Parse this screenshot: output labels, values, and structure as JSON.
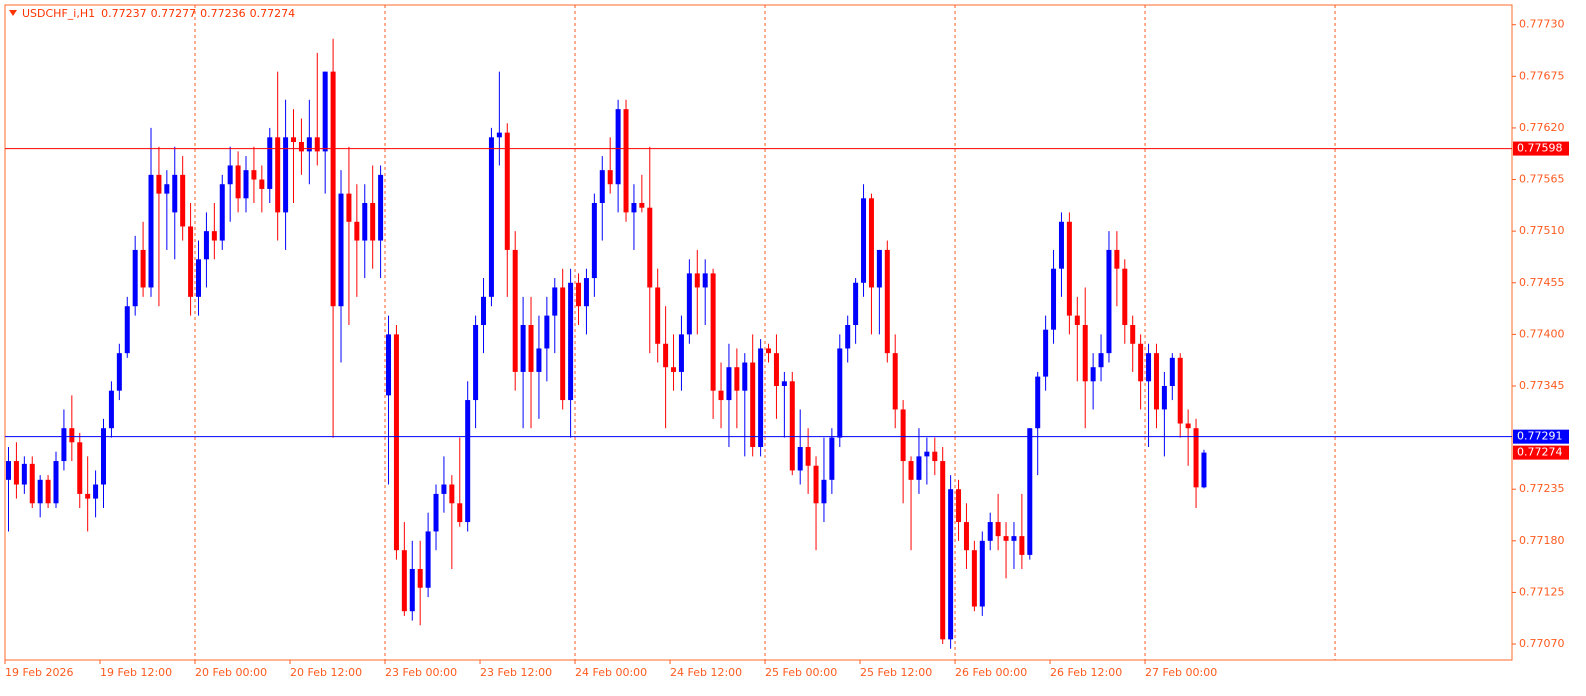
{
  "chart_data": {
    "type": "candlestick",
    "symbol": "USDCHF_i,H1",
    "categories": [
      "19 Feb 2026",
      null,
      null,
      null,
      null,
      null,
      null,
      null,
      null,
      null,
      null,
      null,
      "19 Feb 12:00",
      null,
      null,
      null,
      null,
      null,
      null,
      null,
      null,
      null,
      null,
      null,
      "20 Feb 00:00",
      null,
      null,
      null,
      null,
      null,
      null,
      null,
      null,
      null,
      null,
      null,
      "20 Feb 12:00",
      null,
      null,
      null,
      null,
      null,
      null,
      null,
      null,
      null,
      null,
      null,
      "23 Feb 00:00",
      null,
      null,
      null,
      null,
      null,
      null,
      null,
      null,
      null,
      null,
      null,
      "23 Feb 12:00",
      null,
      null,
      null,
      null,
      null,
      null,
      null,
      null,
      null,
      null,
      null,
      "24 Feb 00:00",
      null,
      null,
      null,
      null,
      null,
      null,
      null,
      null,
      null,
      null,
      null,
      "24 Feb 12:00",
      null,
      null,
      null,
      null,
      null,
      null,
      null,
      null,
      null,
      null,
      null,
      "25 Feb 00:00",
      null,
      null,
      null,
      null,
      null,
      null,
      null,
      null,
      null,
      null,
      null,
      "25 Feb 12:00",
      null,
      null,
      null,
      null,
      null,
      null,
      null,
      null,
      null,
      null,
      null,
      "26 Feb 00:00",
      null,
      null,
      null,
      null,
      null,
      null,
      null,
      null,
      null,
      null,
      null,
      "26 Feb 12:00",
      null,
      null,
      null,
      null,
      null,
      null,
      null,
      null,
      null,
      null,
      null,
      "27 Feb 00:00",
      null,
      null,
      null,
      null,
      null,
      null,
      null
    ],
    "open": [
      0.77245,
      0.77265,
      0.7724,
      0.77262,
      0.7722,
      0.77245,
      0.7722,
      0.77265,
      0.773,
      0.77285,
      0.7723,
      0.77225,
      0.7724,
      0.773,
      0.7734,
      0.7738,
      0.7743,
      0.7749,
      0.7745,
      0.7757,
      0.7755,
      0.7753,
      0.7757,
      0.77515,
      0.7744,
      0.7748,
      0.7751,
      0.775,
      0.7756,
      0.7758,
      0.77545,
      0.77575,
      0.77565,
      0.77555,
      0.7761,
      0.7753,
      0.7761,
      0.77605,
      0.77595,
      0.7761,
      0.77595,
      0.7768,
      0.7743,
      0.7755,
      0.7752,
      0.775,
      0.7754,
      0.775,
      0.77335,
      0.774,
      0.7717,
      0.77105,
      0.7715,
      0.7713,
      0.7719,
      0.7723,
      0.7724,
      0.7722,
      0.772,
      0.7733,
      0.7741,
      0.7744,
      0.7761,
      0.77615,
      0.7749,
      0.7736,
      0.7741,
      0.7736,
      0.77385,
      0.7742,
      0.7745,
      0.7733,
      0.77455,
      0.7743,
      0.7746,
      0.7754,
      0.77575,
      0.7756,
      0.7764,
      0.7753,
      0.7754,
      0.77535,
      0.7745,
      0.7739,
      0.77365,
      0.7736,
      0.774,
      0.77465,
      0.7745,
      0.77465,
      0.7734,
      0.7733,
      0.77365,
      0.7734,
      0.7737,
      0.7728,
      0.77385,
      0.7738,
      0.77345,
      0.7735,
      0.77255,
      0.7728,
      0.7726,
      0.7722,
      0.77245,
      0.7729,
      0.77385,
      0.7741,
      0.77455,
      0.77545,
      0.7745,
      0.7749,
      0.7738,
      0.7732,
      0.77265,
      0.77245,
      0.7727,
      0.77275,
      0.77265,
      0.77075,
      0.77235,
      0.772,
      0.7717,
      0.7711,
      0.7718,
      0.772,
      0.77185,
      0.7718,
      0.77185,
      0.77165,
      0.773,
      0.77355,
      0.77405,
      0.7747,
      0.7752,
      0.7742,
      0.7741,
      0.7735,
      0.77365,
      0.7738,
      0.7749,
      0.7747,
      0.7741,
      0.7739,
      0.7735,
      0.7738,
      0.7732,
      0.77345,
      0.77375,
      0.77305,
      0.773,
      0.77237
    ],
    "high": [
      0.7728,
      0.77285,
      0.7727,
      0.7727,
      0.7725,
      0.7725,
      0.77275,
      0.7732,
      0.77335,
      0.77295,
      0.7727,
      0.77255,
      0.7731,
      0.7735,
      0.7739,
      0.7744,
      0.77505,
      0.7752,
      0.7762,
      0.776,
      0.77575,
      0.776,
      0.7759,
      0.7754,
      0.775,
      0.7753,
      0.7754,
      0.7757,
      0.776,
      0.77595,
      0.7759,
      0.776,
      0.7758,
      0.7762,
      0.7768,
      0.7765,
      0.7764,
      0.7763,
      0.7765,
      0.777,
      0.7768,
      0.77715,
      0.77575,
      0.776,
      0.7756,
      0.7756,
      0.7758,
      0.7758,
      0.7742,
      0.7741,
      0.772,
      0.7718,
      0.7718,
      0.7721,
      0.7724,
      0.7727,
      0.7725,
      0.7729,
      0.7735,
      0.7742,
      0.7746,
      0.7762,
      0.7768,
      0.77625,
      0.7751,
      0.7744,
      0.7744,
      0.7742,
      0.7744,
      0.7746,
      0.7747,
      0.7747,
      0.77465,
      0.7747,
      0.7755,
      0.7759,
      0.7761,
      0.7765,
      0.7765,
      0.7756,
      0.7757,
      0.776,
      0.7747,
      0.7743,
      0.774,
      0.7742,
      0.7748,
      0.7749,
      0.7748,
      0.7747,
      0.7737,
      0.7739,
      0.77385,
      0.7738,
      0.774,
      0.77395,
      0.7739,
      0.774,
      0.7736,
      0.7736,
      0.7732,
      0.773,
      0.7727,
      0.7729,
      0.773,
      0.774,
      0.7742,
      0.7746,
      0.7756,
      0.7755,
      0.7749,
      0.775,
      0.774,
      0.7733,
      0.7727,
      0.773,
      0.7729,
      0.7729,
      0.7728,
      0.7725,
      0.77245,
      0.7722,
      0.7718,
      0.7719,
      0.7721,
      0.7723,
      0.772,
      0.772,
      0.7723,
      0.773,
      0.7736,
      0.7742,
      0.7749,
      0.7753,
      0.7753,
      0.7744,
      0.7745,
      0.7738,
      0.774,
      0.7751,
      0.7751,
      0.7748,
      0.7742,
      0.774,
      0.7739,
      0.7739,
      0.7736,
      0.7738,
      0.7738,
      0.7732,
      0.7731,
      0.77277
    ],
    "low": [
      0.7719,
      0.77225,
      0.7723,
      0.77215,
      0.77205,
      0.77215,
      0.77215,
      0.77255,
      0.77265,
      0.77215,
      0.7719,
      0.77205,
      0.77215,
      0.7729,
      0.7733,
      0.77375,
      0.7742,
      0.7744,
      0.7744,
      0.7743,
      0.7749,
      0.7748,
      0.775,
      0.7742,
      0.7742,
      0.7745,
      0.7748,
      0.7749,
      0.7752,
      0.7753,
      0.7753,
      0.7754,
      0.7753,
      0.7754,
      0.775,
      0.7749,
      0.7754,
      0.7757,
      0.7756,
      0.7758,
      0.7755,
      0.7729,
      0.7737,
      0.7741,
      0.7744,
      0.7746,
      0.7747,
      0.7746,
      0.7724,
      0.7716,
      0.771,
      0.77095,
      0.7709,
      0.7712,
      0.7717,
      0.7721,
      0.7715,
      0.77195,
      0.7719,
      0.773,
      0.7738,
      0.7743,
      0.7758,
      0.7744,
      0.7734,
      0.773,
      0.773,
      0.7731,
      0.7735,
      0.7738,
      0.7732,
      0.7729,
      0.7741,
      0.774,
      0.7744,
      0.775,
      0.7755,
      0.7753,
      0.7752,
      0.7749,
      0.7753,
      0.7738,
      0.7737,
      0.773,
      0.7734,
      0.7734,
      0.7739,
      0.774,
      0.7741,
      0.7731,
      0.773,
      0.7728,
      0.773,
      0.7727,
      0.7727,
      0.7727,
      0.7737,
      0.7731,
      0.7729,
      0.7725,
      0.7724,
      0.7723,
      0.7717,
      0.772,
      0.7723,
      0.7728,
      0.7737,
      0.7739,
      0.7744,
      0.774,
      0.774,
      0.7737,
      0.773,
      0.7722,
      0.7717,
      0.7723,
      0.7724,
      0.7725,
      0.7707,
      0.77065,
      0.7718,
      0.7715,
      0.77105,
      0.771,
      0.7717,
      0.7717,
      0.7714,
      0.7715,
      0.7715,
      0.7716,
      0.7725,
      0.7734,
      0.7739,
      0.7744,
      0.774,
      0.7735,
      0.773,
      0.7732,
      0.7735,
      0.7737,
      0.7743,
      0.7739,
      0.7736,
      0.7732,
      0.7728,
      0.773,
      0.7727,
      0.7733,
      0.7729,
      0.7726,
      0.77215,
      0.77236
    ],
    "close": [
      0.77265,
      0.7724,
      0.77262,
      0.7722,
      0.77245,
      0.7722,
      0.77265,
      0.773,
      0.77285,
      0.7723,
      0.77225,
      0.7724,
      0.773,
      0.7734,
      0.7738,
      0.7743,
      0.7749,
      0.7745,
      0.7757,
      0.7755,
      0.7756,
      0.7757,
      0.77515,
      0.7744,
      0.7748,
      0.7751,
      0.775,
      0.7756,
      0.7758,
      0.77545,
      0.77575,
      0.77565,
      0.77555,
      0.7761,
      0.7753,
      0.7761,
      0.77605,
      0.77595,
      0.7761,
      0.77595,
      0.7768,
      0.7743,
      0.7755,
      0.7752,
      0.775,
      0.7754,
      0.775,
      0.7757,
      0.774,
      0.7717,
      0.77105,
      0.7715,
      0.7713,
      0.7719,
      0.7723,
      0.7724,
      0.7722,
      0.772,
      0.7733,
      0.7741,
      0.7744,
      0.7761,
      0.77615,
      0.7749,
      0.7736,
      0.7741,
      0.7736,
      0.77385,
      0.7742,
      0.7745,
      0.7733,
      0.77455,
      0.7743,
      0.7746,
      0.7754,
      0.77575,
      0.7756,
      0.7764,
      0.7753,
      0.7754,
      0.77535,
      0.7745,
      0.7739,
      0.77365,
      0.7736,
      0.774,
      0.77465,
      0.7745,
      0.77465,
      0.7734,
      0.7733,
      0.77365,
      0.7734,
      0.7737,
      0.7728,
      0.77385,
      0.7738,
      0.77345,
      0.7735,
      0.77255,
      0.7728,
      0.7726,
      0.7722,
      0.77245,
      0.7729,
      0.77385,
      0.7741,
      0.77455,
      0.77545,
      0.7745,
      0.7749,
      0.7738,
      0.7732,
      0.77265,
      0.77245,
      0.7727,
      0.77275,
      0.77265,
      0.77075,
      0.77235,
      0.772,
      0.7717,
      0.7711,
      0.7718,
      0.772,
      0.77185,
      0.7718,
      0.77185,
      0.77165,
      0.773,
      0.77355,
      0.77405,
      0.7747,
      0.7752,
      0.7742,
      0.7741,
      0.7735,
      0.77365,
      0.7738,
      0.7749,
      0.7747,
      0.7741,
      0.7739,
      0.7735,
      0.7738,
      0.7732,
      0.77345,
      0.77375,
      0.77305,
      0.773,
      0.77237,
      0.77274
    ],
    "up_color": "#0000ff",
    "down_color": "#ff0000",
    "axis_color": "#ff5a1f",
    "ylim": [
      0.77053,
      0.77751
    ],
    "yticks": [
      {
        "value": 0.7773,
        "label": "0.77730"
      },
      0.77675,
      {
        "value": 0.7762,
        "label": "0.77620"
      },
      0.77565,
      {
        "value": 0.7751,
        "label": "0.77510"
      },
      0.77455,
      {
        "value": 0.774,
        "label": "0.77400"
      },
      0.77345,
      0.77235,
      {
        "value": 0.7718,
        "label": "0.77180"
      },
      0.77125,
      {
        "value": 0.7707,
        "label": "0.77070"
      }
    ],
    "hlines": [
      {
        "value": 0.77598,
        "color": "#ff0000"
      },
      {
        "value": 0.77291,
        "color": "#0000ff"
      }
    ],
    "grid": true
  }
}
